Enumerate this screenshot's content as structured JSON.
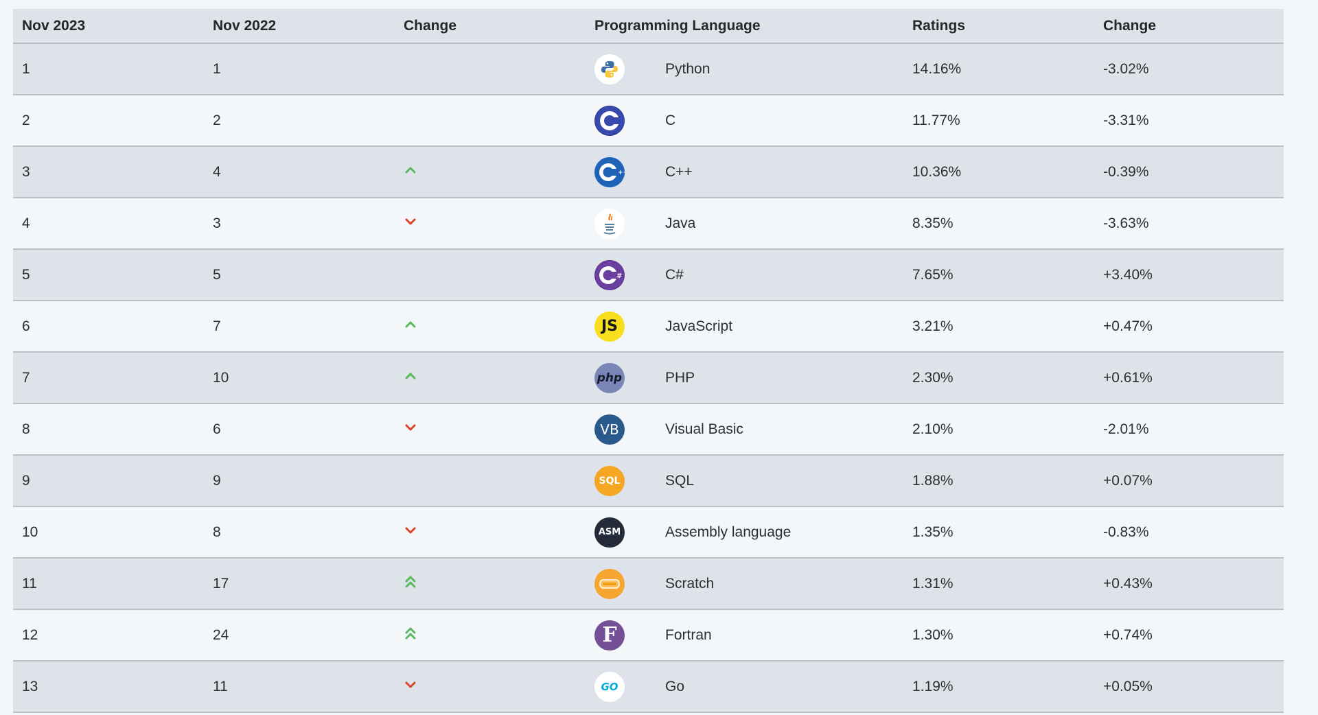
{
  "colors": {
    "up": "#5cb85c",
    "down": "#d9442b",
    "row_odd": "#dde3e8",
    "row_even": "#f3f7fa"
  },
  "header": {
    "col1": "Nov 2023",
    "col2": "Nov 2022",
    "col3": "Change",
    "col4": "Programming Language",
    "col5": "Ratings",
    "col6": "Change"
  },
  "rows": [
    {
      "rank_2023": "1",
      "rank_2022": "1",
      "trend": "none",
      "language": "Python",
      "logo": "python-logo-icon",
      "ratings": "14.16%",
      "change": "-3.02%"
    },
    {
      "rank_2023": "2",
      "rank_2022": "2",
      "trend": "none",
      "language": "C",
      "logo": "c-logo-icon",
      "ratings": "11.77%",
      "change": "-3.31%"
    },
    {
      "rank_2023": "3",
      "rank_2022": "4",
      "trend": "up",
      "language": "C++",
      "logo": "cpp-logo-icon",
      "ratings": "10.36%",
      "change": "-0.39%"
    },
    {
      "rank_2023": "4",
      "rank_2022": "3",
      "trend": "down",
      "language": "Java",
      "logo": "java-logo-icon",
      "ratings": "8.35%",
      "change": "-3.63%"
    },
    {
      "rank_2023": "5",
      "rank_2022": "5",
      "trend": "none",
      "language": "C#",
      "logo": "csharp-logo-icon",
      "ratings": "7.65%",
      "change": "+3.40%"
    },
    {
      "rank_2023": "6",
      "rank_2022": "7",
      "trend": "up",
      "language": "JavaScript",
      "logo": "javascript-logo-icon",
      "ratings": "3.21%",
      "change": "+0.47%"
    },
    {
      "rank_2023": "7",
      "rank_2022": "10",
      "trend": "up",
      "language": "PHP",
      "logo": "php-logo-icon",
      "ratings": "2.30%",
      "change": "+0.61%"
    },
    {
      "rank_2023": "8",
      "rank_2022": "6",
      "trend": "down",
      "language": "Visual Basic",
      "logo": "visual-basic-logo-icon",
      "ratings": "2.10%",
      "change": "-2.01%"
    },
    {
      "rank_2023": "9",
      "rank_2022": "9",
      "trend": "none",
      "language": "SQL",
      "logo": "sql-logo-icon",
      "ratings": "1.88%",
      "change": "+0.07%"
    },
    {
      "rank_2023": "10",
      "rank_2022": "8",
      "trend": "down",
      "language": "Assembly language",
      "logo": "assembly-logo-icon",
      "ratings": "1.35%",
      "change": "-0.83%"
    },
    {
      "rank_2023": "11",
      "rank_2022": "17",
      "trend": "double-up",
      "language": "Scratch",
      "logo": "scratch-logo-icon",
      "ratings": "1.31%",
      "change": "+0.43%"
    },
    {
      "rank_2023": "12",
      "rank_2022": "24",
      "trend": "double-up",
      "language": "Fortran",
      "logo": "fortran-logo-icon",
      "ratings": "1.30%",
      "change": "+0.74%"
    },
    {
      "rank_2023": "13",
      "rank_2022": "11",
      "trend": "down",
      "language": "Go",
      "logo": "go-logo-icon",
      "ratings": "1.19%",
      "change": "+0.05%"
    }
  ],
  "logo_text": {
    "javascript": "JS",
    "php": "php",
    "visual_basic": "VB",
    "sql": "SQL",
    "assembly": "ASM",
    "fortran": "F",
    "go": "GO"
  }
}
